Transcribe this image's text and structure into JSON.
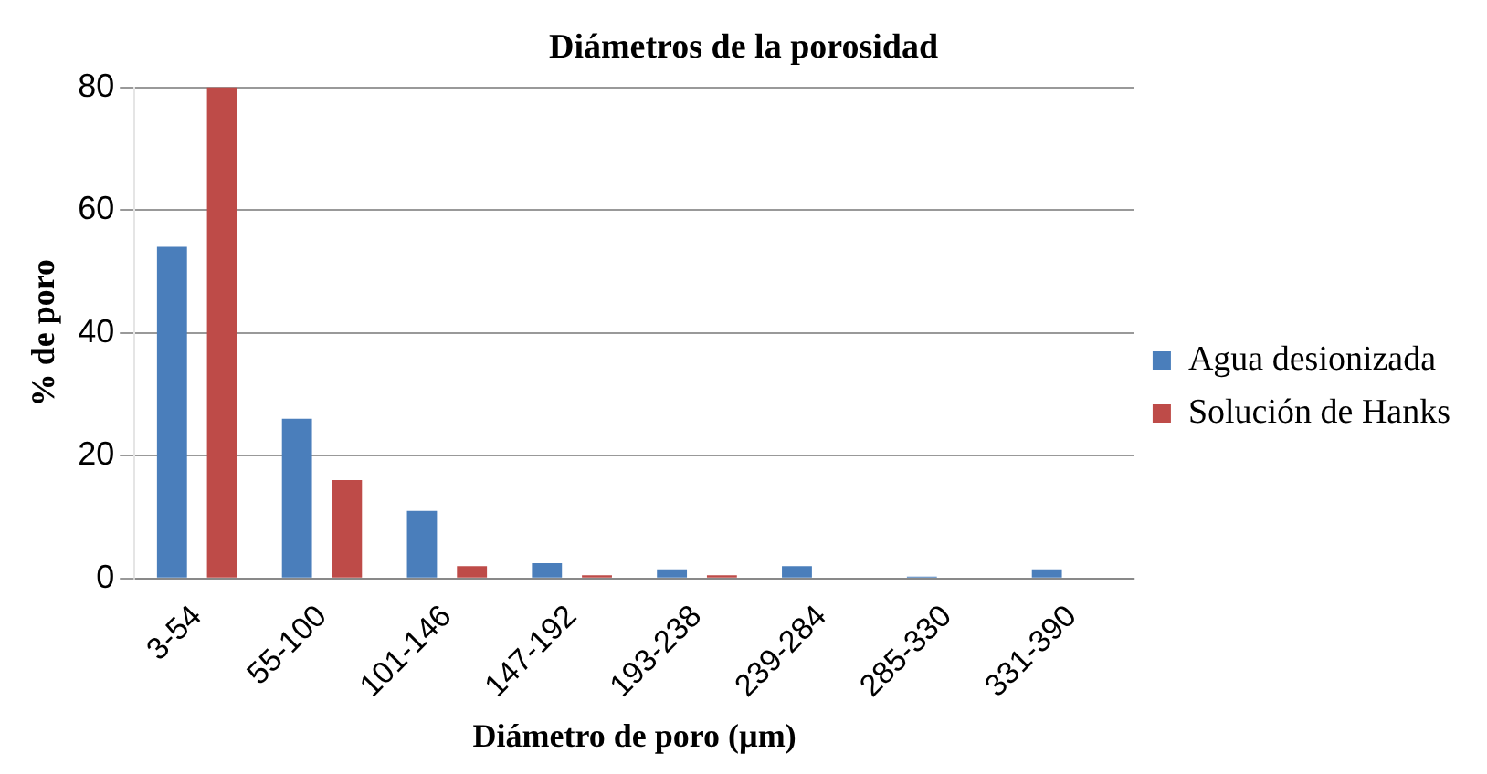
{
  "chart_data": {
    "type": "bar",
    "title": "Diámetros de la porosidad",
    "xlabel": "Diámetro de poro (µm)",
    "ylabel": "% de poro",
    "categories": [
      "3-54",
      "55-100",
      "101-146",
      "147-192",
      "193-238",
      "239-284",
      "285-330",
      "331-390"
    ],
    "series": [
      {
        "name": "Agua desionizada",
        "color": "#4a7ebb",
        "values": [
          54,
          26,
          11,
          2.5,
          1.5,
          2,
          0.3,
          1.5
        ]
      },
      {
        "name": "Solución de Hanks",
        "color": "#be4b48",
        "values": [
          80,
          16,
          2,
          0.5,
          0.5,
          0,
          0,
          0
        ]
      }
    ],
    "ylim": [
      0,
      80
    ],
    "yticks": [
      0,
      20,
      40,
      60,
      80
    ],
    "grid": "y",
    "legend": "right"
  }
}
